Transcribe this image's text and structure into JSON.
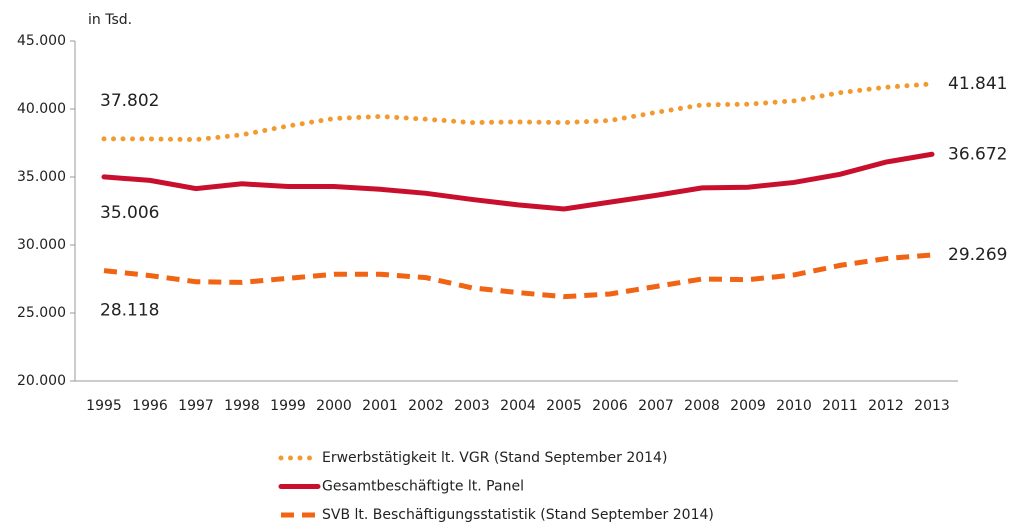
{
  "chart_data": {
    "type": "line",
    "y_label": "in Tsd.",
    "categories": [
      "1995",
      "1996",
      "1997",
      "1998",
      "1999",
      "2000",
      "2001",
      "2002",
      "2003",
      "2004",
      "2005",
      "2006",
      "2007",
      "2008",
      "2009",
      "2010",
      "2011",
      "2012",
      "2013"
    ],
    "ylim": [
      20000,
      45000
    ],
    "yticks": [
      {
        "value": 20000,
        "label": "20.000"
      },
      {
        "value": 25000,
        "label": "25.000"
      },
      {
        "value": 30000,
        "label": "30.000"
      },
      {
        "value": 35000,
        "label": "35.000"
      },
      {
        "value": 40000,
        "label": "40.000"
      },
      {
        "value": 45000,
        "label": "45.000"
      }
    ],
    "grid": false,
    "legend": "bottom",
    "series": [
      {
        "name": "Erwerbstätigkeit lt. VGR (Stand September 2014)",
        "color": "#f39a2e",
        "line_style": "dotted",
        "values": [
          37802,
          37800,
          37750,
          38100,
          38750,
          39300,
          39450,
          39250,
          39000,
          39050,
          39000,
          39150,
          39750,
          40300,
          40350,
          40600,
          41200,
          41600,
          41841
        ],
        "value_labels": [
          "37.802",
          null,
          null,
          null,
          null,
          null,
          null,
          null,
          null,
          null,
          null,
          null,
          null,
          null,
          null,
          null,
          null,
          null,
          "41.841"
        ]
      },
      {
        "name": "Gesamtbeschäftigte lt. Panel",
        "color": "#c8102e",
        "line_style": "solid",
        "values": [
          35006,
          34750,
          34150,
          34500,
          34300,
          34300,
          34100,
          33800,
          33350,
          32950,
          32650,
          33150,
          33650,
          34200,
          34250,
          34600,
          35200,
          36100,
          36672
        ],
        "value_labels": [
          "35.006",
          null,
          null,
          null,
          null,
          null,
          null,
          null,
          null,
          null,
          null,
          null,
          null,
          null,
          null,
          null,
          null,
          null,
          "36.672"
        ]
      },
      {
        "name": "SVB lt. Beschäftigungsstatistik (Stand September 2014)",
        "color": "#f06414",
        "line_style": "dashed",
        "values": [
          28118,
          27750,
          27300,
          27250,
          27550,
          27850,
          27850,
          27600,
          26850,
          26500,
          26200,
          26400,
          26950,
          27500,
          27450,
          27800,
          28500,
          29000,
          29269
        ],
        "value_labels": [
          "28.118",
          null,
          null,
          null,
          null,
          null,
          null,
          null,
          null,
          null,
          null,
          null,
          null,
          null,
          null,
          null,
          null,
          null,
          "29.269"
        ]
      }
    ]
  }
}
